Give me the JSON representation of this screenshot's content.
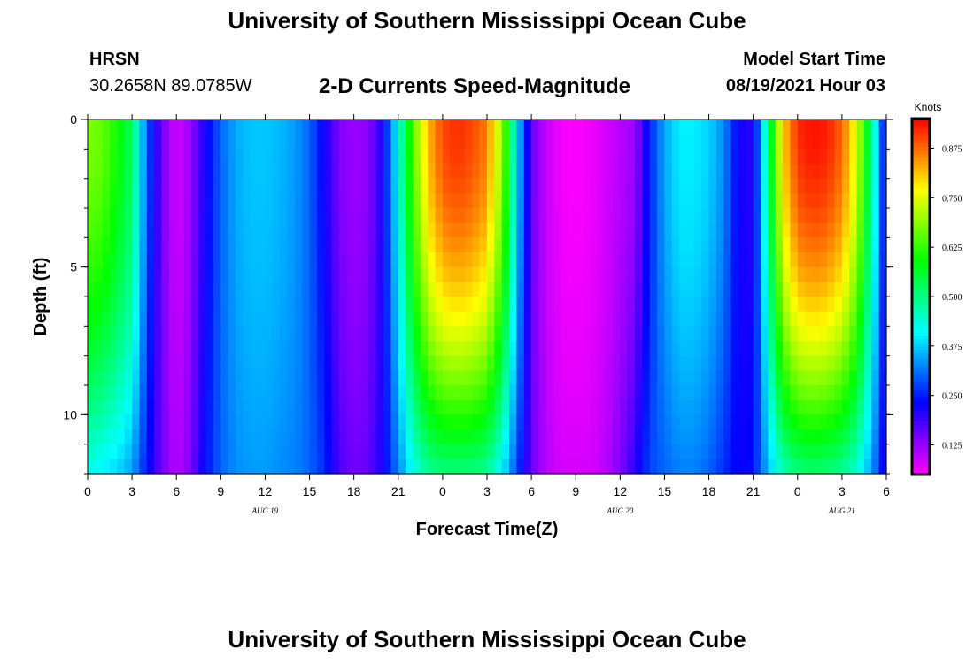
{
  "header": {
    "top_title": "University of Southern Mississippi Ocean Cube",
    "station": "HRSN",
    "coordinates": "30.2658N  89.0785W",
    "subtitle": "2-D Currents Speed-Magnitude",
    "model_start_label": "Model Start Time",
    "model_start_value": "08/19/2021 Hour 03"
  },
  "footer": {
    "bottom_title": "University of Southern Mississippi Ocean Cube"
  },
  "chart_data": {
    "type": "heatmap",
    "title": "2-D Currents Speed-Magnitude",
    "xlabel": "Forecast Time(Z)",
    "ylabel": "Depth (ft)",
    "x_range_hours": [
      0,
      54
    ],
    "x_ticks": [
      {
        "hour": 0,
        "label": "0"
      },
      {
        "hour": 3,
        "label": "3"
      },
      {
        "hour": 6,
        "label": "6"
      },
      {
        "hour": 9,
        "label": "9"
      },
      {
        "hour": 12,
        "label": "12"
      },
      {
        "hour": 15,
        "label": "15"
      },
      {
        "hour": 18,
        "label": "18"
      },
      {
        "hour": 21,
        "label": "21"
      },
      {
        "hour": 24,
        "label": "0"
      },
      {
        "hour": 27,
        "label": "3"
      },
      {
        "hour": 30,
        "label": "6"
      },
      {
        "hour": 33,
        "label": "9"
      },
      {
        "hour": 36,
        "label": "12"
      },
      {
        "hour": 39,
        "label": "15"
      },
      {
        "hour": 42,
        "label": "18"
      },
      {
        "hour": 45,
        "label": "21"
      },
      {
        "hour": 48,
        "label": "0"
      },
      {
        "hour": 51,
        "label": "3"
      },
      {
        "hour": 54,
        "label": "6"
      }
    ],
    "date_labels": [
      {
        "hour": 12,
        "label": "AUG  19"
      },
      {
        "hour": 36,
        "label": "AUG  20"
      },
      {
        "hour": 51,
        "label": "AUG  21"
      }
    ],
    "y_range_ft": [
      0,
      12
    ],
    "y_ticks": [
      {
        "depth": 0,
        "label": "0"
      },
      {
        "depth": 5,
        "label": "5"
      },
      {
        "depth": 10,
        "label": "10"
      }
    ],
    "colorbar": {
      "title": "Knots",
      "range": [
        0.05,
        0.95
      ],
      "ticks": [
        "0.125",
        "0.250",
        "0.375",
        "0.500",
        "0.625",
        "0.750",
        "0.875"
      ]
    },
    "surface_speed_profile": {
      "hours": [
        0,
        1,
        2,
        3,
        4,
        5,
        6,
        7,
        8,
        9,
        10,
        11,
        12,
        13,
        14,
        15,
        16,
        17,
        18,
        19,
        20,
        21,
        22,
        23,
        24,
        25,
        26,
        27,
        28,
        29,
        30,
        31,
        32,
        33,
        34,
        35,
        36,
        37,
        38,
        39,
        40,
        41,
        42,
        43,
        44,
        45,
        46,
        47,
        48,
        49,
        50,
        51,
        52,
        53,
        54
      ],
      "knots": [
        0.68,
        0.66,
        0.6,
        0.52,
        0.3,
        0.15,
        0.08,
        0.12,
        0.22,
        0.3,
        0.35,
        0.37,
        0.37,
        0.36,
        0.34,
        0.3,
        0.22,
        0.14,
        0.12,
        0.13,
        0.22,
        0.42,
        0.65,
        0.82,
        0.9,
        0.92,
        0.9,
        0.86,
        0.7,
        0.4,
        0.16,
        0.09,
        0.06,
        0.05,
        0.06,
        0.08,
        0.1,
        0.12,
        0.25,
        0.35,
        0.4,
        0.4,
        0.38,
        0.33,
        0.22,
        0.2,
        0.5,
        0.8,
        0.92,
        0.94,
        0.93,
        0.88,
        0.75,
        0.5,
        0.2
      ]
    },
    "bottom_speed_profile": {
      "hours": [
        0,
        1,
        2,
        3,
        4,
        5,
        6,
        7,
        8,
        9,
        10,
        11,
        12,
        13,
        14,
        15,
        16,
        17,
        18,
        19,
        20,
        21,
        22,
        23,
        24,
        25,
        26,
        27,
        28,
        29,
        30,
        31,
        32,
        33,
        34,
        35,
        36,
        37,
        38,
        39,
        40,
        41,
        42,
        43,
        44,
        45,
        46,
        47,
        48,
        49,
        50,
        51,
        52,
        53,
        54
      ],
      "knots": [
        0.42,
        0.4,
        0.38,
        0.34,
        0.24,
        0.15,
        0.1,
        0.14,
        0.24,
        0.3,
        0.33,
        0.34,
        0.34,
        0.33,
        0.32,
        0.3,
        0.26,
        0.18,
        0.15,
        0.16,
        0.22,
        0.32,
        0.42,
        0.48,
        0.5,
        0.5,
        0.5,
        0.48,
        0.4,
        0.28,
        0.16,
        0.1,
        0.08,
        0.08,
        0.08,
        0.1,
        0.14,
        0.2,
        0.28,
        0.3,
        0.32,
        0.32,
        0.3,
        0.26,
        0.22,
        0.24,
        0.36,
        0.46,
        0.5,
        0.51,
        0.5,
        0.48,
        0.44,
        0.34,
        0.2
      ]
    }
  }
}
